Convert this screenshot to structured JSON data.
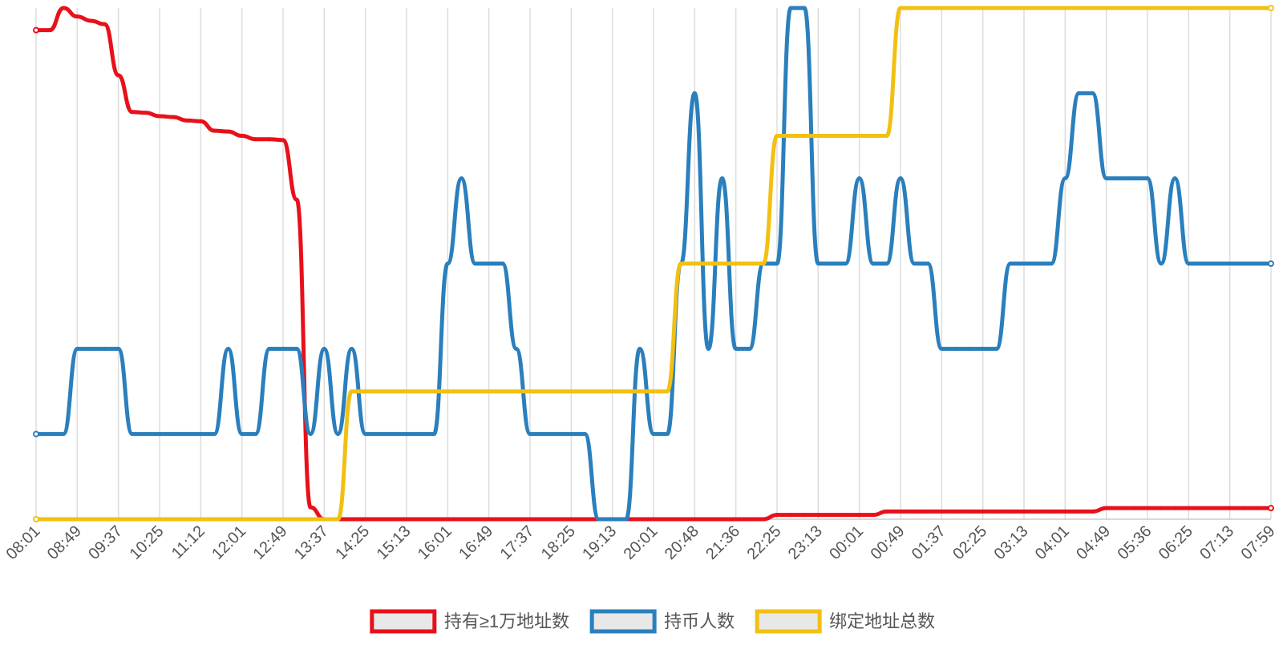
{
  "chart_data": {
    "type": "line",
    "grid": true,
    "legend": "bottom",
    "ylim": [
      0,
      6
    ],
    "categories": [
      "08:01",
      null,
      null,
      "08:49",
      null,
      null,
      "09:37",
      null,
      null,
      "10:25",
      null,
      null,
      "11:12",
      null,
      null,
      "12:01",
      null,
      null,
      "12:49",
      null,
      null,
      "13:37",
      null,
      null,
      "14:25",
      null,
      null,
      "15:13",
      null,
      null,
      "16:01",
      null,
      null,
      "16:49",
      null,
      null,
      "17:37",
      null,
      null,
      "18:25",
      null,
      null,
      "19:13",
      null,
      null,
      "20:01",
      null,
      null,
      "20:48",
      null,
      null,
      "21:36",
      null,
      null,
      "22:25",
      null,
      null,
      "23:13",
      null,
      null,
      "00:01",
      null,
      null,
      "00:49",
      null,
      null,
      "01:37",
      null,
      null,
      "02:25",
      null,
      null,
      "03:13",
      null,
      null,
      "04:01",
      null,
      null,
      "04:49",
      null,
      null,
      "05:36",
      null,
      null,
      "06:25",
      null,
      null,
      "07:13",
      null,
      null,
      "07:59"
    ],
    "series": [
      {
        "name": "持有≥1万地址数",
        "color": "#e8101a",
        "values": [
          5.74,
          5.74,
          6.0,
          5.9,
          5.85,
          5.81,
          5.21,
          4.78,
          4.77,
          4.73,
          4.72,
          4.68,
          4.67,
          4.56,
          4.55,
          4.5,
          4.46,
          4.46,
          4.45,
          3.75,
          0.14,
          0,
          0,
          0,
          0,
          0,
          0,
          0,
          0,
          0,
          0,
          0,
          0,
          0,
          0,
          0,
          0,
          0,
          0,
          0,
          0,
          0,
          0,
          0,
          0,
          0,
          0,
          0,
          0,
          0,
          0,
          0,
          0,
          0,
          0.05,
          0.05,
          0.05,
          0.05,
          0.05,
          0.05,
          0.05,
          0.05,
          0.09,
          0.09,
          0.09,
          0.09,
          0.09,
          0.09,
          0.09,
          0.09,
          0.09,
          0.09,
          0.09,
          0.09,
          0.09,
          0.09,
          0.09,
          0.09,
          0.13,
          0.13,
          0.13,
          0.13,
          0.13,
          0.13,
          0.13,
          0.13,
          0.13,
          0.13,
          0.13,
          0.13,
          0.13
        ]
      },
      {
        "name": "持币人数",
        "color": "#2a7fbd",
        "values": [
          1,
          1,
          1,
          2,
          2,
          2,
          2,
          1,
          1,
          1,
          1,
          1,
          1,
          1,
          2,
          1,
          1,
          2,
          2,
          2,
          1,
          2,
          1,
          2,
          1,
          1,
          1,
          1,
          1,
          1,
          3,
          4,
          3,
          3,
          3,
          2,
          1,
          1,
          1,
          1,
          1,
          0,
          0,
          0,
          2,
          1,
          1,
          3,
          5,
          2,
          4,
          2,
          2,
          3,
          3,
          6,
          6,
          3,
          3,
          3,
          4,
          3,
          3,
          4,
          3,
          3,
          2,
          2,
          2,
          2,
          2,
          3,
          3,
          3,
          3,
          4,
          5,
          5,
          4,
          4,
          4,
          4,
          3,
          4,
          3,
          3,
          3,
          3,
          3,
          3,
          3
        ]
      },
      {
        "name": "绑定地址总数",
        "color": "#f2c012",
        "values": [
          0,
          0,
          0,
          0,
          0,
          0,
          0,
          0,
          0,
          0,
          0,
          0,
          0,
          0,
          0,
          0,
          0,
          0,
          0,
          0,
          0,
          0,
          0,
          1.5,
          1.5,
          1.5,
          1.5,
          1.5,
          1.5,
          1.5,
          1.5,
          1.5,
          1.5,
          1.5,
          1.5,
          1.5,
          1.5,
          1.5,
          1.5,
          1.5,
          1.5,
          1.5,
          1.5,
          1.5,
          1.5,
          1.5,
          1.5,
          3,
          3,
          3,
          3,
          3,
          3,
          3,
          4.5,
          4.5,
          4.5,
          4.5,
          4.5,
          4.5,
          4.5,
          4.5,
          4.5,
          6,
          6,
          6,
          6,
          6,
          6,
          6,
          6,
          6,
          6,
          6,
          6,
          6,
          6,
          6,
          6,
          6,
          6,
          6,
          6,
          6,
          6,
          6,
          6,
          6,
          6,
          6,
          6
        ]
      }
    ]
  }
}
